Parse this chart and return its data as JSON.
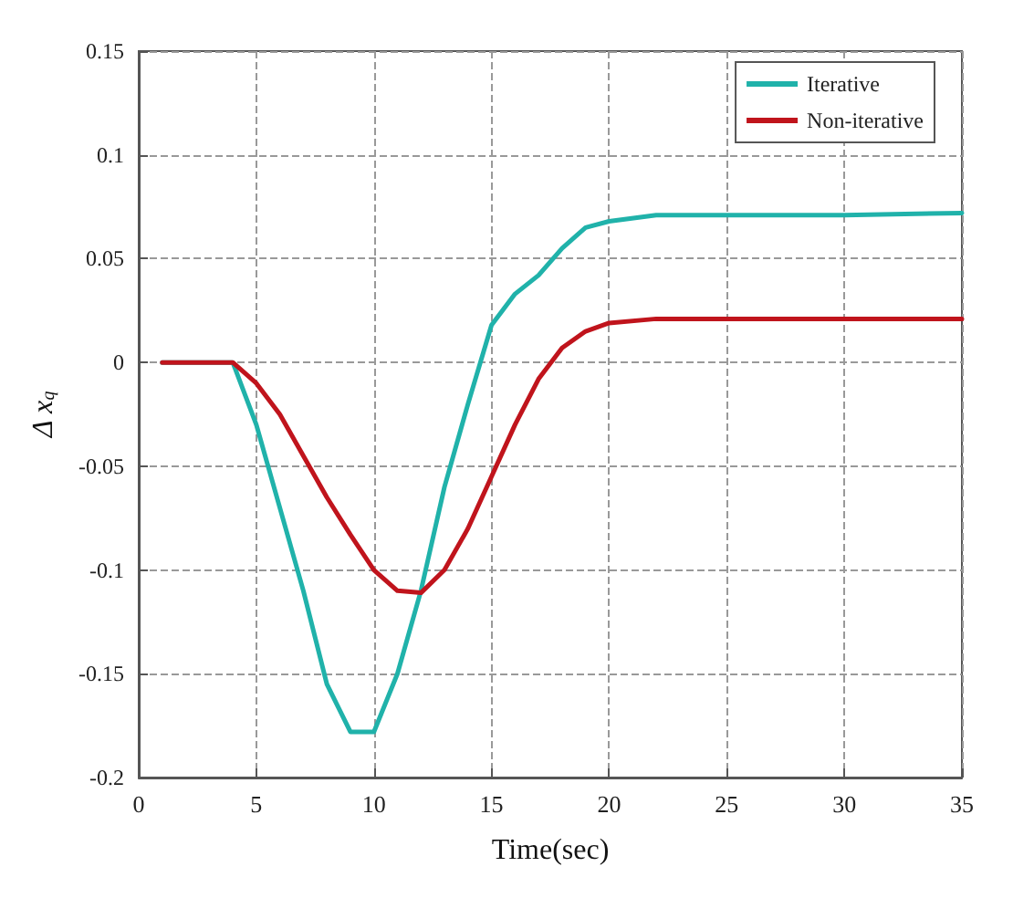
{
  "chart_data": {
    "type": "line",
    "xlabel": "Time(sec)",
    "ylabel": "Δ x$_{q}$",
    "xlim": [
      0,
      35
    ],
    "xticks": [
      0,
      5,
      10,
      15,
      20,
      25,
      30,
      35
    ],
    "ylim": [
      -0.2,
      0.15
    ],
    "yticks": [
      -0.2,
      -0.15,
      -0.1,
      -0.05,
      0,
      0.05,
      0.1,
      0.15
    ],
    "grid": true,
    "legend": "top right",
    "marker": "none",
    "line_style": "solid",
    "x": [
      1,
      4,
      5,
      6,
      7,
      8,
      9,
      10,
      11,
      12,
      13,
      14,
      15,
      16,
      17,
      18,
      19,
      20,
      22,
      25,
      30,
      35
    ],
    "series": [
      {
        "name": "Iterative",
        "color": "#20b2aa",
        "values": [
          0,
          0,
          -0.03,
          -0.07,
          -0.11,
          -0.155,
          -0.178,
          -0.178,
          -0.15,
          -0.11,
          -0.06,
          -0.02,
          0.018,
          0.033,
          0.042,
          0.055,
          0.065,
          0.068,
          0.071,
          0.071,
          0.071,
          0.072
        ]
      },
      {
        "name": "Non-iterative",
        "color": "#c0141c",
        "values": [
          0,
          0,
          -0.01,
          -0.025,
          -0.045,
          -0.065,
          -0.083,
          -0.1,
          -0.11,
          -0.111,
          -0.1,
          -0.08,
          -0.055,
          -0.03,
          -0.008,
          0.007,
          0.015,
          0.019,
          0.021,
          0.021,
          0.021,
          0.021
        ]
      }
    ]
  }
}
